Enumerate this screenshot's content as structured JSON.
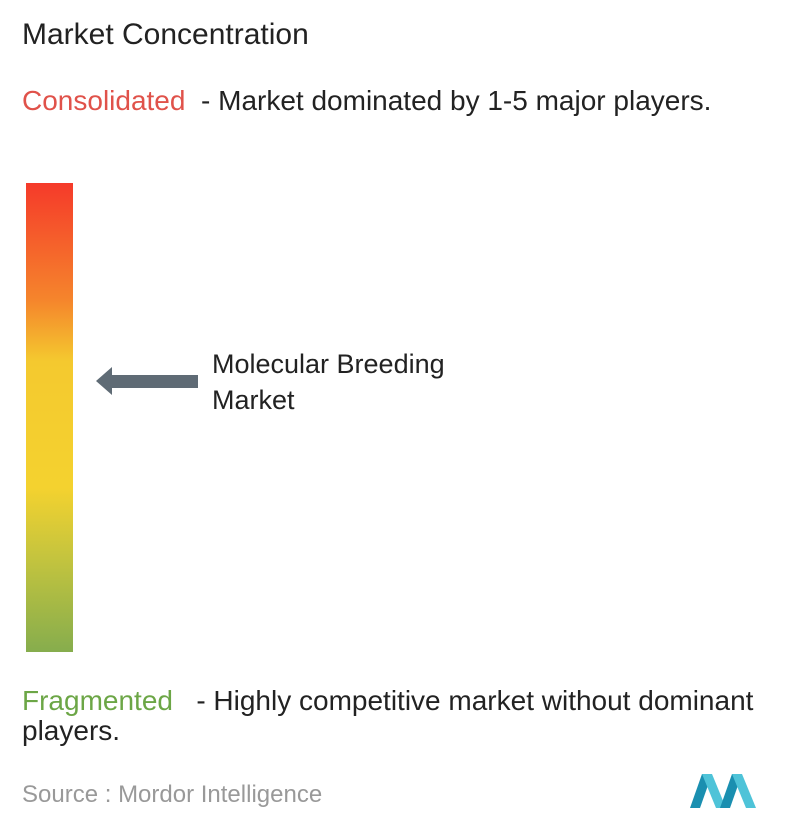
{
  "title": "Market Concentration",
  "consolidated": {
    "label": "Consolidated",
    "description": "- Market dominated by 1-5 major players."
  },
  "marker": {
    "label": "Molecular Breeding Market"
  },
  "fragmented": {
    "label": "Fragmented",
    "description": "- Highly competitive market without dominant players."
  },
  "source": {
    "label": "Source :",
    "name": "Mordor Intelligence"
  }
}
